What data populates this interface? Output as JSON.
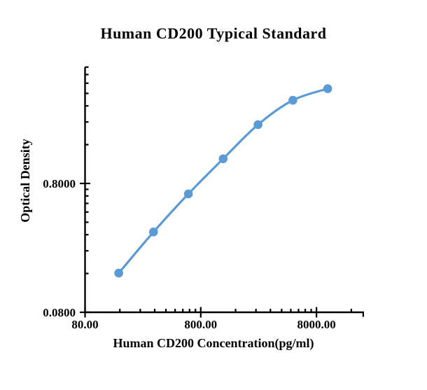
{
  "page": {
    "background": "#ffffff"
  },
  "chart": {
    "title": "Human CD200 Typical Standard",
    "x_axis_title": "Human CD200 Concentration(pg/ml)",
    "y_axis_title": "Optical Density"
  },
  "chart_data": {
    "type": "line",
    "title": "Human CD200 Typical Standard",
    "xlabel": "Human CD200 Concentration(pg/ml)",
    "ylabel": "Optical Density",
    "x_scale": "log",
    "y_scale": "log",
    "xlim": [
      80,
      20000
    ],
    "ylim": [
      0.08,
      6.4
    ],
    "grid": false,
    "legend": null,
    "smooth": true,
    "marker": "circle",
    "series": [
      {
        "name": "Typical Standard",
        "x": [
          156.25,
          312.5,
          625,
          1250,
          2500,
          5000,
          10000
        ],
        "y": [
          0.161,
          0.336,
          0.664,
          1.243,
          2.29,
          3.54,
          4.35
        ]
      }
    ],
    "x_major_ticks": [
      80,
      800,
      8000
    ],
    "x_major_tick_labels": [
      "80.00",
      "800.00",
      "8000.00"
    ],
    "x_minor_ticks": [
      160,
      240,
      320,
      400,
      480,
      560,
      640,
      720,
      1600,
      2400,
      3200,
      4000,
      4800,
      5600,
      6400,
      7200,
      16000
    ],
    "y_major_ticks": [
      0.08,
      0.8
    ],
    "y_major_tick_labels": [
      "0.0800",
      "0.8000"
    ],
    "y_minor_ticks": [
      0.16,
      0.24,
      0.32,
      0.4,
      0.48,
      0.56,
      0.64,
      0.72,
      1.6,
      2.4,
      3.2,
      4.0,
      4.8,
      5.6,
      6.4
    ],
    "colors": {
      "series": "#5B9BD5",
      "axis": "#000000",
      "text": "#000000",
      "background": "#ffffff"
    }
  }
}
